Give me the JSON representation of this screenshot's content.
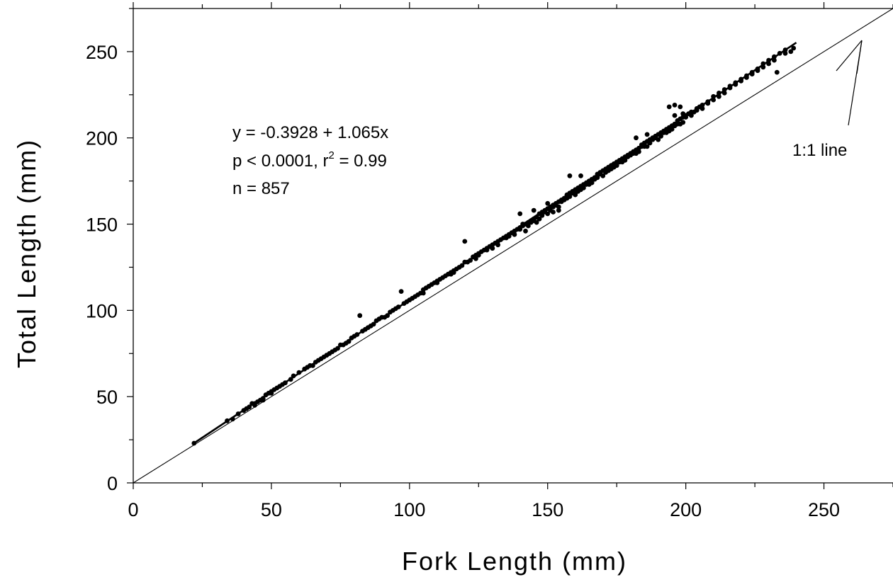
{
  "chart_data": {
    "type": "scatter",
    "title": "",
    "xlabel": "Fork Length (mm)",
    "ylabel": "Total Length (mm)",
    "xlim": [
      0,
      275
    ],
    "ylim": [
      0,
      275
    ],
    "xticks": [
      "0",
      "50",
      "100",
      "150",
      "200",
      "250"
    ],
    "yticks": [
      "0",
      "50",
      "100",
      "150",
      "200",
      "250"
    ],
    "grid": false,
    "legend": "none",
    "point_color": "#000000",
    "regression": {
      "intercept": -0.3928,
      "slope": 1.065,
      "x_range": [
        22,
        240
      ]
    },
    "reference_line": {
      "label": "1:1 line",
      "slope": 1,
      "intercept": 0
    },
    "annotations": {
      "equation": "y = -0.3928 + 1.065x",
      "stats_prefix": "p < 0.0001, r",
      "stats_sup": "2",
      "stats_suffix": " = 0.99",
      "n": "n = 857"
    },
    "points": [
      [
        22,
        23
      ],
      [
        34,
        36
      ],
      [
        36,
        37
      ],
      [
        38,
        40
      ],
      [
        40,
        42
      ],
      [
        41,
        43
      ],
      [
        42,
        44
      ],
      [
        43,
        46
      ],
      [
        44,
        46
      ],
      [
        45,
        47
      ],
      [
        46,
        48
      ],
      [
        47,
        49
      ],
      [
        48,
        51
      ],
      [
        49,
        52
      ],
      [
        50,
        53
      ],
      [
        51,
        54
      ],
      [
        52,
        55
      ],
      [
        53,
        56
      ],
      [
        55,
        58
      ],
      [
        57,
        60
      ],
      [
        60,
        64
      ],
      [
        62,
        66
      ],
      [
        63,
        67
      ],
      [
        65,
        68
      ],
      [
        66,
        70
      ],
      [
        68,
        72
      ],
      [
        69,
        73
      ],
      [
        70,
        74
      ],
      [
        72,
        76
      ],
      [
        74,
        78
      ],
      [
        75,
        80
      ],
      [
        77,
        81
      ],
      [
        78,
        82
      ],
      [
        80,
        85
      ],
      [
        81,
        86
      ],
      [
        82,
        97
      ],
      [
        83,
        88
      ],
      [
        85,
        90
      ],
      [
        86,
        91
      ],
      [
        88,
        94
      ],
      [
        89,
        95
      ],
      [
        90,
        96
      ],
      [
        92,
        97
      ],
      [
        93,
        99
      ],
      [
        95,
        101
      ],
      [
        96,
        102
      ],
      [
        97,
        111
      ],
      [
        98,
        104
      ],
      [
        100,
        106
      ],
      [
        101,
        107
      ],
      [
        103,
        109
      ],
      [
        104,
        110
      ],
      [
        106,
        113
      ],
      [
        107,
        114
      ],
      [
        109,
        116
      ],
      [
        110,
        117
      ],
      [
        111,
        118
      ],
      [
        112,
        119
      ],
      [
        113,
        120
      ],
      [
        114,
        121
      ],
      [
        115,
        122
      ],
      [
        116,
        123
      ],
      [
        117,
        124
      ],
      [
        118,
        125
      ],
      [
        119,
        126
      ],
      [
        120,
        140
      ],
      [
        121,
        128
      ],
      [
        122,
        129
      ],
      [
        123,
        131
      ],
      [
        124,
        132
      ],
      [
        125,
        133
      ],
      [
        126,
        134
      ],
      [
        127,
        135
      ],
      [
        128,
        136
      ],
      [
        129,
        137
      ],
      [
        130,
        138
      ],
      [
        131,
        139
      ],
      [
        132,
        140
      ],
      [
        133,
        141
      ],
      [
        134,
        142
      ],
      [
        135,
        143
      ],
      [
        136,
        144
      ],
      [
        137,
        145
      ],
      [
        138,
        146
      ],
      [
        139,
        147
      ],
      [
        140,
        148
      ],
      [
        141,
        149
      ],
      [
        142,
        150
      ],
      [
        143,
        151
      ],
      [
        144,
        152
      ],
      [
        145,
        153
      ],
      [
        146,
        154
      ],
      [
        147,
        156
      ],
      [
        148,
        157
      ],
      [
        149,
        158
      ],
      [
        150,
        159
      ],
      [
        151,
        160
      ],
      [
        152,
        161
      ],
      [
        153,
        162
      ],
      [
        154,
        163
      ],
      [
        155,
        164
      ],
      [
        156,
        165
      ],
      [
        157,
        167
      ],
      [
        158,
        168
      ],
      [
        159,
        169
      ],
      [
        160,
        170
      ],
      [
        161,
        171
      ],
      [
        162,
        172
      ],
      [
        163,
        173
      ],
      [
        164,
        174
      ],
      [
        165,
        175
      ],
      [
        166,
        176
      ],
      [
        167,
        177
      ],
      [
        168,
        178
      ],
      [
        169,
        179
      ],
      [
        170,
        181
      ],
      [
        171,
        182
      ],
      [
        172,
        183
      ],
      [
        173,
        184
      ],
      [
        174,
        185
      ],
      [
        175,
        186
      ],
      [
        176,
        187
      ],
      [
        177,
        188
      ],
      [
        178,
        189
      ],
      [
        179,
        190
      ],
      [
        180,
        191
      ],
      [
        181,
        192
      ],
      [
        182,
        193
      ],
      [
        183,
        194
      ],
      [
        184,
        196
      ],
      [
        185,
        197
      ],
      [
        186,
        198
      ],
      [
        187,
        199
      ],
      [
        188,
        200
      ],
      [
        189,
        201
      ],
      [
        190,
        202
      ],
      [
        191,
        203
      ],
      [
        192,
        204
      ],
      [
        193,
        205
      ],
      [
        194,
        206
      ],
      [
        195,
        207
      ],
      [
        196,
        208
      ],
      [
        197,
        210
      ],
      [
        198,
        211
      ],
      [
        199,
        212
      ],
      [
        200,
        213
      ],
      [
        202,
        215
      ],
      [
        204,
        217
      ],
      [
        206,
        219
      ],
      [
        208,
        221
      ],
      [
        210,
        224
      ],
      [
        212,
        226
      ],
      [
        214,
        228
      ],
      [
        216,
        230
      ],
      [
        218,
        232
      ],
      [
        220,
        234
      ],
      [
        222,
        236
      ],
      [
        224,
        238
      ],
      [
        226,
        240
      ],
      [
        228,
        243
      ],
      [
        230,
        245
      ],
      [
        232,
        247
      ],
      [
        234,
        249
      ],
      [
        236,
        251
      ],
      [
        238,
        250
      ],
      [
        239,
        252
      ],
      [
        44,
        45
      ],
      [
        47,
        48
      ],
      [
        50,
        52
      ],
      [
        54,
        57
      ],
      [
        58,
        62
      ],
      [
        64,
        68
      ],
      [
        67,
        71
      ],
      [
        71,
        75
      ],
      [
        73,
        77
      ],
      [
        76,
        80
      ],
      [
        79,
        84
      ],
      [
        84,
        89
      ],
      [
        87,
        92
      ],
      [
        91,
        96
      ],
      [
        94,
        100
      ],
      [
        99,
        105
      ],
      [
        102,
        108
      ],
      [
        105,
        112
      ],
      [
        108,
        115
      ],
      [
        116,
        122
      ],
      [
        120,
        128
      ],
      [
        124,
        130
      ],
      [
        128,
        135
      ],
      [
        132,
        138
      ],
      [
        136,
        143
      ],
      [
        140,
        147
      ],
      [
        144,
        151
      ],
      [
        148,
        155
      ],
      [
        152,
        160
      ],
      [
        156,
        164
      ],
      [
        160,
        168
      ],
      [
        164,
        173
      ],
      [
        168,
        177
      ],
      [
        172,
        181
      ],
      [
        176,
        186
      ],
      [
        180,
        190
      ],
      [
        184,
        195
      ],
      [
        188,
        199
      ],
      [
        192,
        203
      ],
      [
        196,
        207
      ],
      [
        200,
        212
      ],
      [
        204,
        216
      ],
      [
        208,
        220
      ],
      [
        212,
        224
      ],
      [
        216,
        229
      ],
      [
        220,
        233
      ],
      [
        224,
        237
      ],
      [
        228,
        241
      ],
      [
        232,
        245
      ],
      [
        236,
        249
      ],
      [
        105,
        110
      ],
      [
        110,
        116
      ],
      [
        115,
        121
      ],
      [
        125,
        132
      ],
      [
        130,
        136
      ],
      [
        135,
        142
      ],
      [
        138,
        144
      ],
      [
        141,
        150
      ],
      [
        143,
        149
      ],
      [
        145,
        152
      ],
      [
        147,
        153
      ],
      [
        149,
        157
      ],
      [
        151,
        158
      ],
      [
        153,
        161
      ],
      [
        155,
        163
      ],
      [
        157,
        165
      ],
      [
        159,
        168
      ],
      [
        161,
        169
      ],
      [
        163,
        171
      ],
      [
        165,
        173
      ],
      [
        167,
        176
      ],
      [
        169,
        180
      ],
      [
        171,
        180
      ],
      [
        173,
        182
      ],
      [
        175,
        184
      ],
      [
        177,
        186
      ],
      [
        179,
        189
      ],
      [
        181,
        191
      ],
      [
        183,
        192
      ],
      [
        185,
        195
      ],
      [
        187,
        197
      ],
      [
        189,
        200
      ],
      [
        191,
        201
      ],
      [
        193,
        203
      ],
      [
        195,
        205
      ],
      [
        197,
        208
      ],
      [
        199,
        209
      ],
      [
        201,
        214
      ],
      [
        203,
        215
      ],
      [
        205,
        218
      ],
      [
        140,
        156
      ],
      [
        145,
        158
      ],
      [
        150,
        162
      ],
      [
        158,
        178
      ],
      [
        162,
        178
      ],
      [
        182,
        200
      ],
      [
        186,
        202
      ],
      [
        194,
        218
      ],
      [
        196,
        219
      ],
      [
        198,
        218
      ],
      [
        142,
        146
      ],
      [
        146,
        151
      ],
      [
        150,
        156
      ],
      [
        154,
        160
      ],
      [
        158,
        166
      ],
      [
        162,
        170
      ],
      [
        166,
        174
      ],
      [
        170,
        178
      ],
      [
        174,
        183
      ],
      [
        178,
        187
      ],
      [
        182,
        191
      ],
      [
        186,
        195
      ],
      [
        190,
        199
      ],
      [
        194,
        204
      ],
      [
        198,
        208
      ],
      [
        202,
        213
      ],
      [
        206,
        217
      ],
      [
        210,
        222
      ],
      [
        214,
        226
      ],
      [
        218,
        231
      ],
      [
        222,
        235
      ],
      [
        226,
        239
      ],
      [
        230,
        243
      ],
      [
        233,
        238
      ],
      [
        196,
        213
      ],
      [
        199,
        214
      ],
      [
        152,
        157
      ],
      [
        154,
        158
      ],
      [
        160,
        167
      ],
      [
        168,
        179
      ]
    ]
  }
}
